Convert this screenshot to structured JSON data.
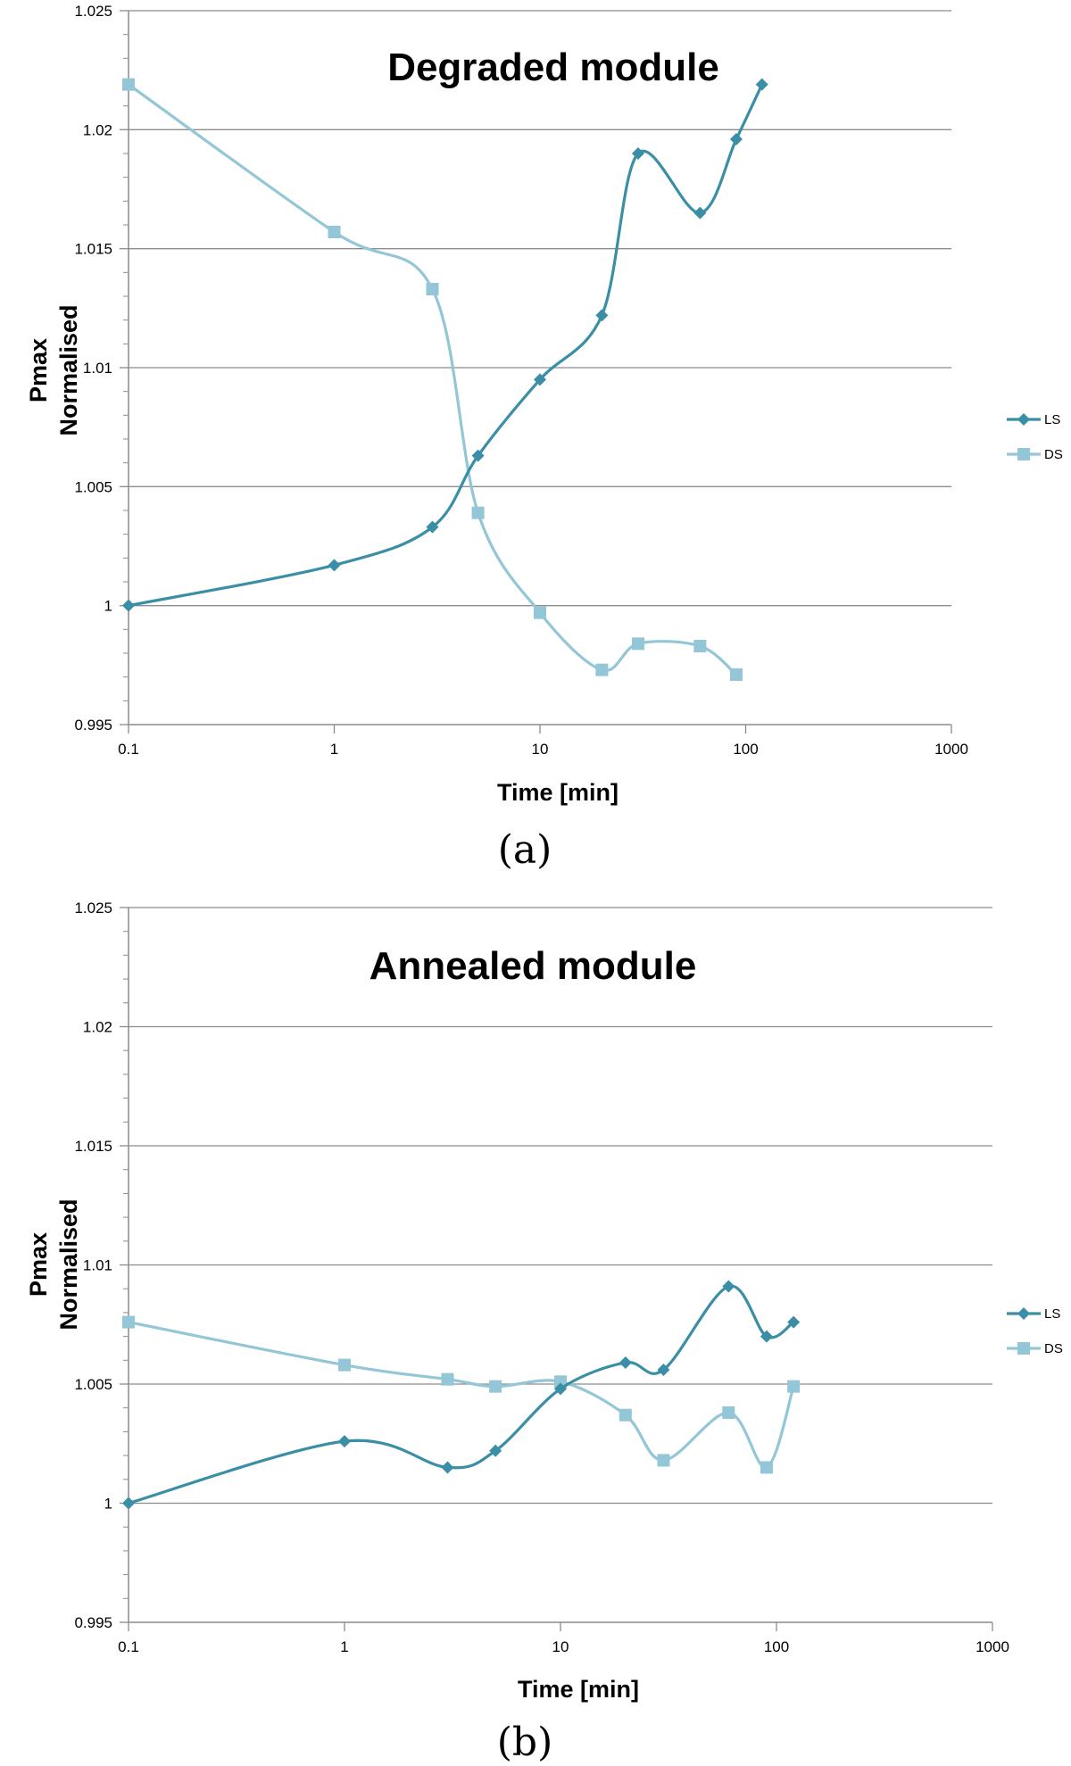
{
  "colors": {
    "LS": "#3a8ea5",
    "DS": "#93c6d6",
    "grid": "#8c8c8c",
    "axis": "#8c8c8c"
  },
  "chart_data": [
    {
      "type": "line",
      "title": "Degraded module",
      "caption": "(a)",
      "xlabel": "Time [min]",
      "ylabel_lines": [
        "Pmax",
        "Normalised"
      ],
      "xscale": "log",
      "xlim": [
        0.1,
        1000
      ],
      "ylim": [
        0.995,
        1.025
      ],
      "xticks": [
        "0.1",
        "1",
        "10",
        "100",
        "1000"
      ],
      "yticks": [
        "0.995",
        "1",
        "1.005",
        "1.01",
        "1.015",
        "1.02",
        "1.025"
      ],
      "grid": true,
      "legend": "right",
      "series": [
        {
          "name": "LS",
          "marker": "diamond",
          "x": [
            0.1,
            1,
            3,
            5,
            10,
            20,
            30,
            60,
            90,
            120
          ],
          "y": [
            1.0,
            1.0017,
            1.0033,
            1.0063,
            1.0095,
            1.0122,
            1.019,
            1.0165,
            1.0196,
            1.0219
          ]
        },
        {
          "name": "DS",
          "marker": "square",
          "x": [
            0.1,
            1,
            3,
            5,
            10,
            20,
            30,
            60,
            90
          ],
          "y": [
            1.0219,
            1.0157,
            1.0133,
            1.0039,
            0.9997,
            0.9973,
            0.9984,
            0.9983,
            0.9971
          ]
        }
      ]
    },
    {
      "type": "line",
      "title": "Annealed module",
      "caption": "(b)",
      "xlabel": "Time [min]",
      "ylabel_lines": [
        "Pmax",
        "Normalised"
      ],
      "xscale": "log",
      "xlim": [
        0.1,
        1000
      ],
      "ylim": [
        0.995,
        1.025
      ],
      "xticks": [
        "0.1",
        "1",
        "10",
        "100",
        "1000"
      ],
      "yticks": [
        "0.995",
        "1",
        "1.005",
        "1.01",
        "1.015",
        "1.02",
        "1.025"
      ],
      "grid": true,
      "legend": "right",
      "series": [
        {
          "name": "LS",
          "marker": "diamond",
          "x": [
            0.1,
            1,
            3,
            5,
            10,
            20,
            30,
            60,
            90,
            120
          ],
          "y": [
            1.0,
            1.0026,
            1.0015,
            1.0022,
            1.0048,
            1.0059,
            1.0056,
            1.0091,
            1.007,
            1.0076
          ]
        },
        {
          "name": "DS",
          "marker": "square",
          "x": [
            0.1,
            1,
            3,
            5,
            10,
            20,
            30,
            60,
            90,
            120
          ],
          "y": [
            1.0076,
            1.0058,
            1.0052,
            1.0049,
            1.0051,
            1.0037,
            1.0018,
            1.0038,
            1.0015,
            1.0049
          ]
        }
      ]
    }
  ]
}
